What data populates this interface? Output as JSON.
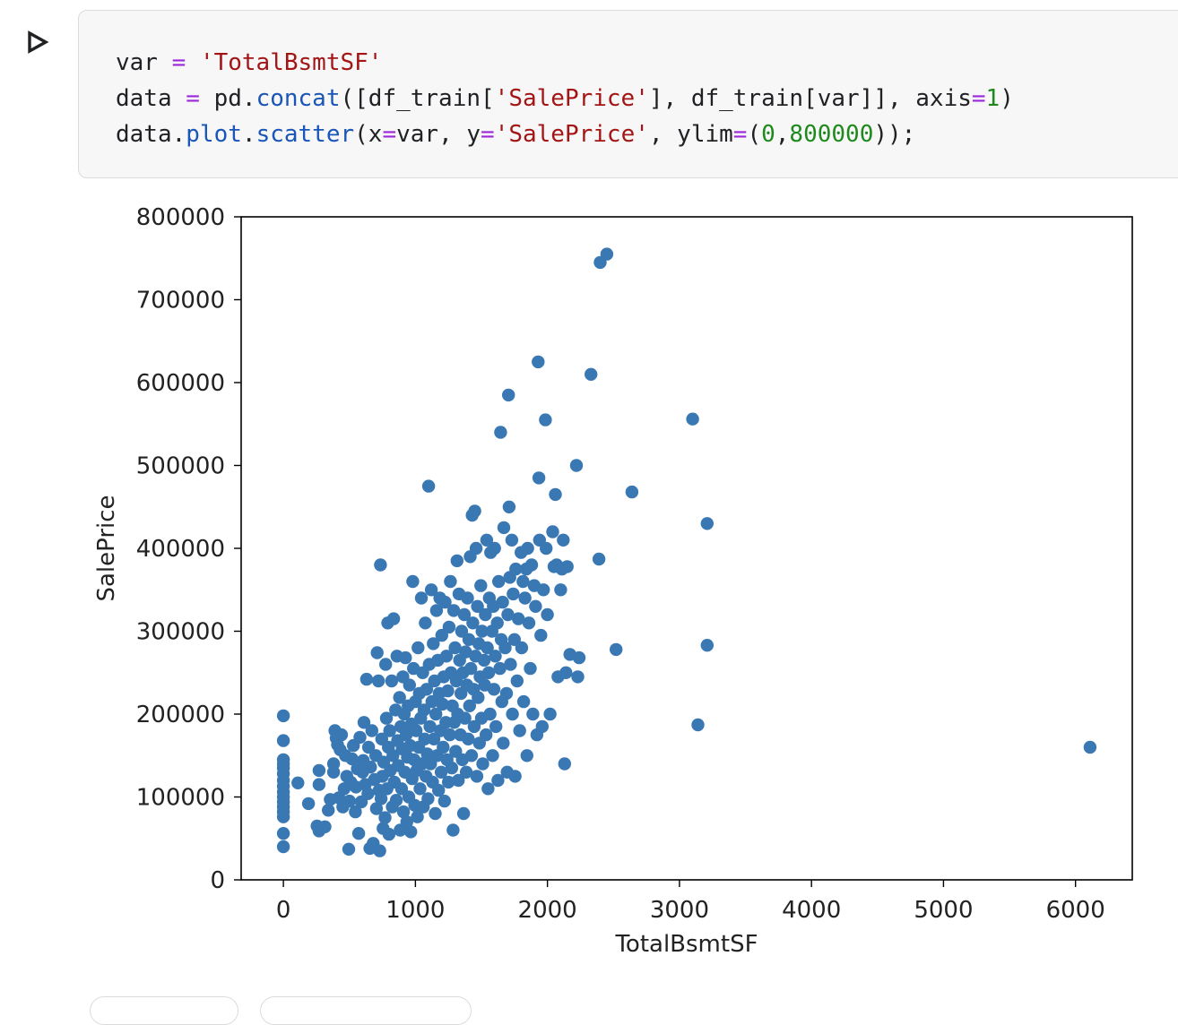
{
  "cell": {
    "run_icon": "play-outline-icon",
    "line1": [
      {
        "t": "var",
        "c": ""
      },
      {
        "t": " ",
        "c": ""
      },
      {
        "t": "=",
        "c": "op"
      },
      {
        "t": " ",
        "c": ""
      },
      {
        "t": "'TotalBsmtSF'",
        "c": "str"
      }
    ],
    "line2": [
      {
        "t": "data",
        "c": ""
      },
      {
        "t": " ",
        "c": ""
      },
      {
        "t": "=",
        "c": "op"
      },
      {
        "t": " pd.",
        "c": ""
      },
      {
        "t": "concat",
        "c": "fn"
      },
      {
        "t": "([df_train[",
        "c": ""
      },
      {
        "t": "'SalePrice'",
        "c": "str"
      },
      {
        "t": "], df_train[var]], axis",
        "c": ""
      },
      {
        "t": "=",
        "c": "op"
      },
      {
        "t": "1",
        "c": "num"
      },
      {
        "t": ")",
        "c": ""
      }
    ],
    "line3": [
      {
        "t": "data.",
        "c": ""
      },
      {
        "t": "plot",
        "c": "fn"
      },
      {
        "t": ".",
        "c": ""
      },
      {
        "t": "scatter",
        "c": "fn"
      },
      {
        "t": "(x",
        "c": ""
      },
      {
        "t": "=",
        "c": "op"
      },
      {
        "t": "var, y",
        "c": ""
      },
      {
        "t": "=",
        "c": "op"
      },
      {
        "t": "'SalePrice'",
        "c": "str"
      },
      {
        "t": ", ylim",
        "c": ""
      },
      {
        "t": "=",
        "c": "op"
      },
      {
        "t": "(",
        "c": ""
      },
      {
        "t": "0",
        "c": "num"
      },
      {
        "t": ",",
        "c": ""
      },
      {
        "t": "800000",
        "c": "num"
      },
      {
        "t": "));",
        "c": ""
      }
    ]
  },
  "chart_data": {
    "type": "scatter",
    "xlabel": "TotalBsmtSF",
    "ylabel": "SalePrice",
    "xlim": [
      -320,
      6430
    ],
    "ylim": [
      0,
      800000
    ],
    "x_ticks": [
      0,
      1000,
      2000,
      3000,
      4000,
      5000,
      6000
    ],
    "y_ticks": [
      0,
      100000,
      200000,
      300000,
      400000,
      500000,
      600000,
      700000,
      800000
    ],
    "grid": false,
    "marker_color": "#3a78b4",
    "points": [
      [
        0,
        198000
      ],
      [
        0,
        168000
      ],
      [
        0,
        145000
      ],
      [
        0,
        140000
      ],
      [
        0,
        135000
      ],
      [
        0,
        128000
      ],
      [
        0,
        120000
      ],
      [
        0,
        113000
      ],
      [
        0,
        106000
      ],
      [
        0,
        100000
      ],
      [
        0,
        94000
      ],
      [
        0,
        88000
      ],
      [
        0,
        82000
      ],
      [
        0,
        76000
      ],
      [
        0,
        56000
      ],
      [
        0,
        40000
      ],
      [
        110,
        117000
      ],
      [
        190,
        92000
      ],
      [
        270,
        132000
      ],
      [
        270,
        115000
      ],
      [
        255,
        65000
      ],
      [
        270,
        59000
      ],
      [
        315,
        64000
      ],
      [
        340,
        84000
      ],
      [
        355,
        97000
      ],
      [
        380,
        140000
      ],
      [
        380,
        130000
      ],
      [
        390,
        180000
      ],
      [
        400,
        171000
      ],
      [
        410,
        163000
      ],
      [
        420,
        99000
      ],
      [
        430,
        157000
      ],
      [
        440,
        175000
      ],
      [
        450,
        88000
      ],
      [
        460,
        110000
      ],
      [
        470,
        150000
      ],
      [
        480,
        125000
      ],
      [
        495,
        37000
      ],
      [
        500,
        95000
      ],
      [
        510,
        118000
      ],
      [
        520,
        146000
      ],
      [
        530,
        162000
      ],
      [
        545,
        82000
      ],
      [
        550,
        112000
      ],
      [
        560,
        134000
      ],
      [
        570,
        56000
      ],
      [
        580,
        172000
      ],
      [
        590,
        94000
      ],
      [
        600,
        130000
      ],
      [
        605,
        144000
      ],
      [
        610,
        190000
      ],
      [
        620,
        115000
      ],
      [
        630,
        242000
      ],
      [
        640,
        104000
      ],
      [
        645,
        160000
      ],
      [
        655,
        38000
      ],
      [
        660,
        136000
      ],
      [
        670,
        180000
      ],
      [
        680,
        44000
      ],
      [
        690,
        121000
      ],
      [
        700,
        150000
      ],
      [
        705,
        86000
      ],
      [
        710,
        274000
      ],
      [
        720,
        240000
      ],
      [
        725,
        108000
      ],
      [
        730,
        35000
      ],
      [
        735,
        380000
      ],
      [
        740,
        98000
      ],
      [
        745,
        170000
      ],
      [
        750,
        125000
      ],
      [
        755,
        62000
      ],
      [
        760,
        142000
      ],
      [
        770,
        75000
      ],
      [
        775,
        260000
      ],
      [
        780,
        195000
      ],
      [
        785,
        110000
      ],
      [
        790,
        310000
      ],
      [
        795,
        160000
      ],
      [
        800,
        55000
      ],
      [
        805,
        180000
      ],
      [
        810,
        132000
      ],
      [
        820,
        240000
      ],
      [
        825,
        88000
      ],
      [
        830,
        150000
      ],
      [
        835,
        315000
      ],
      [
        840,
        118000
      ],
      [
        850,
        205000
      ],
      [
        855,
        96000
      ],
      [
        860,
        270000
      ],
      [
        865,
        168000
      ],
      [
        870,
        138000
      ],
      [
        880,
        220000
      ],
      [
        885,
        60000
      ],
      [
        890,
        185000
      ],
      [
        895,
        110000
      ],
      [
        900,
        158000
      ],
      [
        905,
        245000
      ],
      [
        910,
        82000
      ],
      [
        915,
        200000
      ],
      [
        920,
        130000
      ],
      [
        925,
        268000
      ],
      [
        930,
        175000
      ],
      [
        935,
        70000
      ],
      [
        940,
        148000
      ],
      [
        945,
        210000
      ],
      [
        950,
        100000
      ],
      [
        955,
        235000
      ],
      [
        960,
        162000
      ],
      [
        965,
        58000
      ],
      [
        970,
        188000
      ],
      [
        975,
        122000
      ],
      [
        980,
        360000
      ],
      [
        985,
        255000
      ],
      [
        990,
        145000
      ],
      [
        995,
        90000
      ],
      [
        1000,
        215000
      ],
      [
        1005,
        180000
      ],
      [
        1010,
        132000
      ],
      [
        1015,
        76000
      ],
      [
        1020,
        280000
      ],
      [
        1025,
        160000
      ],
      [
        1030,
        225000
      ],
      [
        1035,
        110000
      ],
      [
        1040,
        195000
      ],
      [
        1045,
        340000
      ],
      [
        1050,
        140000
      ],
      [
        1055,
        250000
      ],
      [
        1060,
        88000
      ],
      [
        1065,
        205000
      ],
      [
        1070,
        170000
      ],
      [
        1075,
        310000
      ],
      [
        1080,
        125000
      ],
      [
        1085,
        230000
      ],
      [
        1090,
        152000
      ],
      [
        1095,
        98000
      ],
      [
        1100,
        475000
      ],
      [
        1105,
        260000
      ],
      [
        1110,
        185000
      ],
      [
        1115,
        140000
      ],
      [
        1120,
        350000
      ],
      [
        1125,
        215000
      ],
      [
        1130,
        118000
      ],
      [
        1135,
        285000
      ],
      [
        1140,
        170000
      ],
      [
        1145,
        240000
      ],
      [
        1150,
        80000
      ],
      [
        1155,
        200000
      ],
      [
        1160,
        325000
      ],
      [
        1165,
        150000
      ],
      [
        1170,
        265000
      ],
      [
        1175,
        108000
      ],
      [
        1180,
        225000
      ],
      [
        1185,
        340000
      ],
      [
        1190,
        180000
      ],
      [
        1195,
        130000
      ],
      [
        1200,
        295000
      ],
      [
        1205,
        212000
      ],
      [
        1210,
        160000
      ],
      [
        1215,
        245000
      ],
      [
        1220,
        95000
      ],
      [
        1225,
        335000
      ],
      [
        1230,
        190000
      ],
      [
        1235,
        270000
      ],
      [
        1240,
        145000
      ],
      [
        1245,
        228000
      ],
      [
        1250,
        118000
      ],
      [
        1255,
        305000
      ],
      [
        1260,
        175000
      ],
      [
        1265,
        360000
      ],
      [
        1270,
        250000
      ],
      [
        1275,
        135000
      ],
      [
        1280,
        210000
      ],
      [
        1285,
        60000
      ],
      [
        1290,
        325000
      ],
      [
        1295,
        190000
      ],
      [
        1300,
        280000
      ],
      [
        1305,
        155000
      ],
      [
        1310,
        240000
      ],
      [
        1315,
        385000
      ],
      [
        1320,
        200000
      ],
      [
        1325,
        120000
      ],
      [
        1330,
        345000
      ],
      [
        1335,
        265000
      ],
      [
        1340,
        175000
      ],
      [
        1345,
        225000
      ],
      [
        1350,
        300000
      ],
      [
        1355,
        145000
      ],
      [
        1360,
        250000
      ],
      [
        1365,
        80000
      ],
      [
        1370,
        320000
      ],
      [
        1375,
        195000
      ],
      [
        1380,
        275000
      ],
      [
        1385,
        130000
      ],
      [
        1390,
        235000
      ],
      [
        1395,
        340000
      ],
      [
        1400,
        170000
      ],
      [
        1405,
        290000
      ],
      [
        1410,
        210000
      ],
      [
        1415,
        390000
      ],
      [
        1420,
        255000
      ],
      [
        1425,
        150000
      ],
      [
        1430,
        440000
      ],
      [
        1435,
        310000
      ],
      [
        1440,
        230000
      ],
      [
        1445,
        185000
      ],
      [
        1450,
        445000
      ],
      [
        1455,
        270000
      ],
      [
        1460,
        400000
      ],
      [
        1465,
        125000
      ],
      [
        1470,
        330000
      ],
      [
        1475,
        220000
      ],
      [
        1480,
        285000
      ],
      [
        1485,
        165000
      ],
      [
        1490,
        245000
      ],
      [
        1495,
        355000
      ],
      [
        1500,
        195000
      ],
      [
        1505,
        300000
      ],
      [
        1510,
        140000
      ],
      [
        1520,
        265000
      ],
      [
        1525,
        235000
      ],
      [
        1530,
        320000
      ],
      [
        1535,
        175000
      ],
      [
        1540,
        410000
      ],
      [
        1545,
        280000
      ],
      [
        1550,
        110000
      ],
      [
        1555,
        250000
      ],
      [
        1560,
        340000
      ],
      [
        1565,
        200000
      ],
      [
        1570,
        395000
      ],
      [
        1580,
        300000
      ],
      [
        1585,
        150000
      ],
      [
        1590,
        330000
      ],
      [
        1595,
        230000
      ],
      [
        1600,
        400000
      ],
      [
        1605,
        270000
      ],
      [
        1610,
        185000
      ],
      [
        1620,
        310000
      ],
      [
        1625,
        120000
      ],
      [
        1630,
        360000
      ],
      [
        1640,
        255000
      ],
      [
        1645,
        540000
      ],
      [
        1650,
        290000
      ],
      [
        1655,
        215000
      ],
      [
        1660,
        335000
      ],
      [
        1665,
        165000
      ],
      [
        1670,
        425000
      ],
      [
        1680,
        280000
      ],
      [
        1690,
        225000
      ],
      [
        1695,
        130000
      ],
      [
        1700,
        320000
      ],
      [
        1705,
        585000
      ],
      [
        1710,
        450000
      ],
      [
        1715,
        365000
      ],
      [
        1720,
        260000
      ],
      [
        1730,
        410000
      ],
      [
        1735,
        200000
      ],
      [
        1740,
        345000
      ],
      [
        1750,
        290000
      ],
      [
        1755,
        125000
      ],
      [
        1760,
        375000
      ],
      [
        1770,
        240000
      ],
      [
        1780,
        315000
      ],
      [
        1790,
        180000
      ],
      [
        1800,
        395000
      ],
      [
        1805,
        280000
      ],
      [
        1815,
        360000
      ],
      [
        1820,
        215000
      ],
      [
        1830,
        340000
      ],
      [
        1840,
        375000
      ],
      [
        1845,
        150000
      ],
      [
        1850,
        400000
      ],
      [
        1860,
        310000
      ],
      [
        1870,
        255000
      ],
      [
        1880,
        380000
      ],
      [
        1890,
        200000
      ],
      [
        1900,
        355000
      ],
      [
        1910,
        330000
      ],
      [
        1920,
        175000
      ],
      [
        1930,
        625000
      ],
      [
        1935,
        485000
      ],
      [
        1940,
        410000
      ],
      [
        1950,
        295000
      ],
      [
        1960,
        185000
      ],
      [
        1970,
        350000
      ],
      [
        1985,
        555000
      ],
      [
        1990,
        400000
      ],
      [
        2000,
        320000
      ],
      [
        2020,
        200000
      ],
      [
        2040,
        420000
      ],
      [
        2050,
        378000
      ],
      [
        2060,
        465000
      ],
      [
        2070,
        380000
      ],
      [
        2080,
        245000
      ],
      [
        2100,
        350000
      ],
      [
        2110,
        375000
      ],
      [
        2120,
        410000
      ],
      [
        2130,
        140000
      ],
      [
        2140,
        250000
      ],
      [
        2150,
        378000
      ],
      [
        2170,
        272000
      ],
      [
        2220,
        500000
      ],
      [
        2240,
        268000
      ],
      [
        2230,
        245000
      ],
      [
        2330,
        610000
      ],
      [
        2390,
        387000
      ],
      [
        2400,
        745000
      ],
      [
        2450,
        755000
      ],
      [
        2520,
        278000
      ],
      [
        2640,
        468000
      ],
      [
        3100,
        556000
      ],
      [
        3140,
        187000
      ],
      [
        3210,
        430000
      ],
      [
        3210,
        283000
      ],
      [
        6110,
        160000
      ]
    ]
  }
}
